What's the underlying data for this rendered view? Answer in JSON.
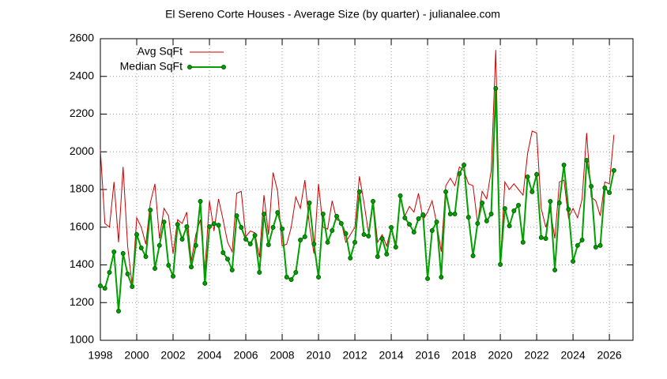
{
  "chart_data": {
    "type": "line",
    "title": "El Sereno Corte Houses - Average Size (by quarter) - julianalee.com",
    "x": [
      1998,
      1998.25,
      1998.5,
      1998.75,
      1999,
      1999.25,
      1999.5,
      1999.75,
      2000,
      2000.25,
      2000.5,
      2000.75,
      2001,
      2001.25,
      2001.5,
      2001.75,
      2002,
      2002.25,
      2002.5,
      2002.75,
      2003,
      2003.25,
      2003.5,
      2003.75,
      2004,
      2004.25,
      2004.5,
      2004.75,
      2005,
      2005.25,
      2005.5,
      2005.75,
      2006,
      2006.25,
      2006.5,
      2006.75,
      2007,
      2007.25,
      2007.5,
      2007.75,
      2008,
      2008.25,
      2008.5,
      2008.75,
      2009,
      2009.25,
      2009.5,
      2009.75,
      2010,
      2010.25,
      2010.5,
      2010.75,
      2011,
      2011.25,
      2011.5,
      2011.75,
      2012,
      2012.25,
      2012.5,
      2012.75,
      2013,
      2013.25,
      2013.5,
      2013.75,
      2014,
      2014.25,
      2014.5,
      2014.75,
      2015,
      2015.25,
      2015.5,
      2015.75,
      2016,
      2016.25,
      2016.5,
      2016.75,
      2017,
      2017.25,
      2017.5,
      2017.75,
      2018,
      2018.25,
      2018.5,
      2018.75,
      2019,
      2019.25,
      2019.5,
      2019.75,
      2020,
      2020.25,
      2020.5,
      2020.75,
      2021,
      2021.25,
      2021.5,
      2021.75,
      2022,
      2022.25,
      2022.5,
      2022.75,
      2023,
      2023.25,
      2023.5,
      2023.75,
      2024,
      2024.25,
      2024.5,
      2024.75,
      2025,
      2025.25,
      2025.5,
      2025.75,
      2026,
      2026.25
    ],
    "series": [
      {
        "name": "Avg SqFt",
        "color": "#cc0000",
        "values": [
          2010,
          1620,
          1600,
          1840,
          1520,
          1920,
          1500,
          1290,
          1650,
          1600,
          1510,
          1730,
          1830,
          1540,
          1700,
          1660,
          1460,
          1640,
          1620,
          1680,
          1420,
          1560,
          1640,
          1370,
          1740,
          1580,
          1750,
          1640,
          1520,
          1470,
          1780,
          1790,
          1550,
          1580,
          1570,
          1440,
          1770,
          1560,
          1890,
          1790,
          1500,
          1510,
          1600,
          1760,
          1700,
          1850,
          1610,
          1460,
          1830,
          1600,
          1590,
          1740,
          1640,
          1630,
          1520,
          1560,
          1600,
          1870,
          1730,
          1570,
          1750,
          1520,
          1560,
          1500,
          1600,
          1510,
          1770,
          1660,
          1710,
          1680,
          1780,
          1640,
          1680,
          1740,
          1620,
          1470,
          1820,
          1860,
          1820,
          1920,
          1900,
          1830,
          1820,
          1620,
          1790,
          1750,
          1900,
          2540,
          1400,
          1840,
          1800,
          1830,
          1800,
          1770,
          1990,
          2110,
          2100,
          1700,
          1600,
          1690,
          1540,
          1840,
          1850,
          1650,
          1700,
          1650,
          1750,
          2100,
          1760,
          1740,
          1660,
          1840,
          1830,
          2090
        ]
      },
      {
        "name": "Median SqFt",
        "color": "#00a000",
        "values": [
          1289,
          1276,
          1360,
          1469,
          1155,
          1461,
          1352,
          1285,
          1561,
          1490,
          1444,
          1691,
          1381,
          1503,
          1628,
          1398,
          1340,
          1615,
          1536,
          1603,
          1389,
          1503,
          1737,
          1302,
          1603,
          1619,
          1611,
          1465,
          1431,
          1373,
          1661,
          1599,
          1536,
          1511,
          1557,
          1360,
          1670,
          1507,
          1599,
          1678,
          1591,
          1335,
          1322,
          1360,
          1532,
          1549,
          1729,
          1511,
          1335,
          1670,
          1520,
          1582,
          1658,
          1620,
          1566,
          1436,
          1520,
          1788,
          1561,
          1553,
          1737,
          1444,
          1540,
          1457,
          1599,
          1494,
          1767,
          1649,
          1615,
          1574,
          1645,
          1666,
          1327,
          1582,
          1628,
          1335,
          1788,
          1670,
          1670,
          1884,
          1930,
          1653,
          1448,
          1620,
          1729,
          1633,
          1670,
          2336,
          1402,
          1699,
          1607,
          1687,
          1716,
          1520,
          1867,
          1788,
          1880,
          1545,
          1540,
          1737,
          1373,
          1729,
          1930,
          1695,
          1419,
          1503,
          1532,
          1955,
          1817,
          1494,
          1503,
          1809,
          1783,
          1901
        ]
      }
    ],
    "xlim": [
      1998,
      2027.3
    ],
    "xticks": [
      1998,
      2000,
      2002,
      2004,
      2006,
      2008,
      2010,
      2012,
      2014,
      2016,
      2018,
      2020,
      2022,
      2024,
      2026
    ],
    "ylim": [
      1000,
      2600
    ],
    "yticks": [
      1000,
      1200,
      1400,
      1600,
      1800,
      2000,
      2200,
      2400,
      2600
    ],
    "grid": true
  }
}
